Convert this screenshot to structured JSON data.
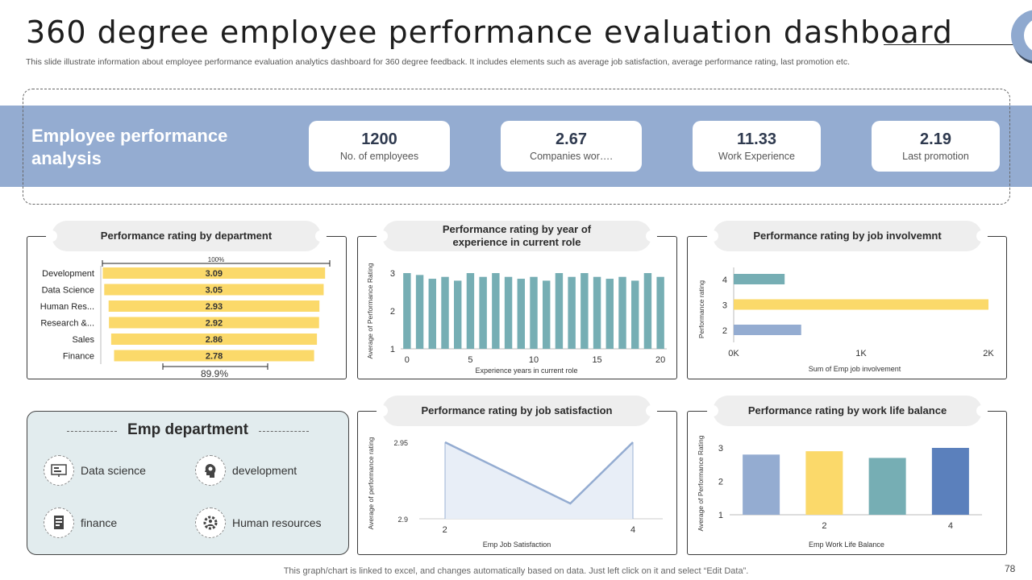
{
  "header": {
    "title": "360 degree employee performance evaluation dashboard",
    "subtitle": "This slide illustrate information about employee performance evaluation analytics dashboard for 360 degree feedback. It includes elements such as average job satisfaction, average performance rating, last promotion etc."
  },
  "band": {
    "title": "Employee performance analysis",
    "kpis": [
      {
        "value": "1200",
        "label": "No. of employees"
      },
      {
        "value": "2.67",
        "label": "Companies wor…."
      },
      {
        "value": "11.33",
        "label": "Work Experience"
      },
      {
        "value": "2.19",
        "label": "Last promotion"
      }
    ]
  },
  "panels": {
    "dept": "Performance  rating by department",
    "experience": "Performance  rating by year of experience  in current role",
    "involvement": "Performance  rating by job involvemnt",
    "satisfaction": "Performance  rating by job satisfaction",
    "worklife": "Performance  rating by work life balance"
  },
  "emp_department": {
    "title": "Emp department",
    "items": [
      {
        "label": "Data science",
        "icon": "presentation-icon"
      },
      {
        "label": "development",
        "icon": "head-gear-icon"
      },
      {
        "label": "finance",
        "icon": "ledger-icon"
      },
      {
        "label": "Human resources",
        "icon": "people-gear-icon"
      }
    ]
  },
  "footer": "This graph/chart is linked to excel,  and changes automatically based on data. Just left click on it and select “Edit Data”.",
  "page_number": "78",
  "colors": {
    "yellow": "#fbd96a",
    "teal": "#76aeb4",
    "blue": "#94acd1",
    "darkblue": "#5b80bc",
    "band": "#94acd1"
  },
  "chart_data": [
    {
      "id": "dept",
      "type": "bar",
      "orientation": "horizontal",
      "title": "Performance  rating by department",
      "categories": [
        "Development",
        "Data Science",
        "Human Res...",
        "Research &...",
        "Sales",
        "Finance"
      ],
      "values": [
        3.09,
        3.05,
        2.93,
        2.92,
        2.86,
        2.78
      ],
      "labels": [
        "3.09",
        "3.05",
        "2.93",
        "2.92",
        "2.86",
        "2.78"
      ],
      "top_label": "100%",
      "bottom_label": "89.9%"
    },
    {
      "id": "experience",
      "type": "bar",
      "title": "Performance  rating by year of experience  in current role",
      "xlabel": "Experience years in current role",
      "ylabel": "Average of Performance Rating",
      "x": [
        0,
        1,
        2,
        3,
        4,
        5,
        6,
        7,
        8,
        9,
        10,
        11,
        12,
        13,
        14,
        15,
        16,
        17,
        18,
        19,
        20
      ],
      "values": [
        3.0,
        2.95,
        2.85,
        2.9,
        2.8,
        3.0,
        2.9,
        3.0,
        2.9,
        2.85,
        2.9,
        2.8,
        3.0,
        2.9,
        3.0,
        2.9,
        2.85,
        2.9,
        2.8,
        3.0,
        2.9
      ],
      "xticks": [
        "0",
        "5",
        "10",
        "15",
        "20"
      ],
      "xtick_values": [
        0,
        5,
        10,
        15,
        20
      ],
      "yticks": [
        "1",
        "2",
        "3"
      ],
      "ylim": [
        1,
        3.2
      ]
    },
    {
      "id": "involvement",
      "type": "bar",
      "orientation": "horizontal",
      "title": "Performance  rating by job involvemnt",
      "xlabel": "Sum of Emp job involvement",
      "ylabel": "Performance rating",
      "categories": [
        "4",
        "3",
        "2"
      ],
      "values": [
        400,
        2100,
        530
      ],
      "xticks": [
        "0K",
        "1K",
        "2K"
      ],
      "xtick_values": [
        0,
        1000,
        2000
      ],
      "xlim": [
        0,
        2000
      ]
    },
    {
      "id": "satisfaction",
      "type": "area",
      "title": "Performance  rating by job satisfaction",
      "xlabel": "Emp Job Satisfaction",
      "ylabel": "Average of performance rating",
      "x": [
        1,
        3,
        4
      ],
      "values": [
        2.95,
        2.91,
        2.95
      ],
      "xticks": [
        "2",
        "4"
      ],
      "xtick_values": [
        2,
        4
      ],
      "yticks": [
        "2.9",
        "2.95"
      ],
      "ytick_values": [
        2.9,
        2.95
      ],
      "xlim": [
        1,
        4
      ],
      "ylim": [
        2.9,
        2.95
      ]
    },
    {
      "id": "worklife",
      "type": "bar",
      "title": "Performance  rating by work life balance",
      "xlabel": "Emp Work Life Balance",
      "ylabel": "Average of Performance Rating",
      "categories": [
        "1",
        "2",
        "3",
        "4"
      ],
      "values": [
        2.8,
        2.9,
        2.7,
        3.0
      ],
      "xticks": [
        "2",
        "4"
      ],
      "yticks": [
        "1",
        "2",
        "3"
      ],
      "ylim": [
        1,
        3.2
      ]
    }
  ]
}
